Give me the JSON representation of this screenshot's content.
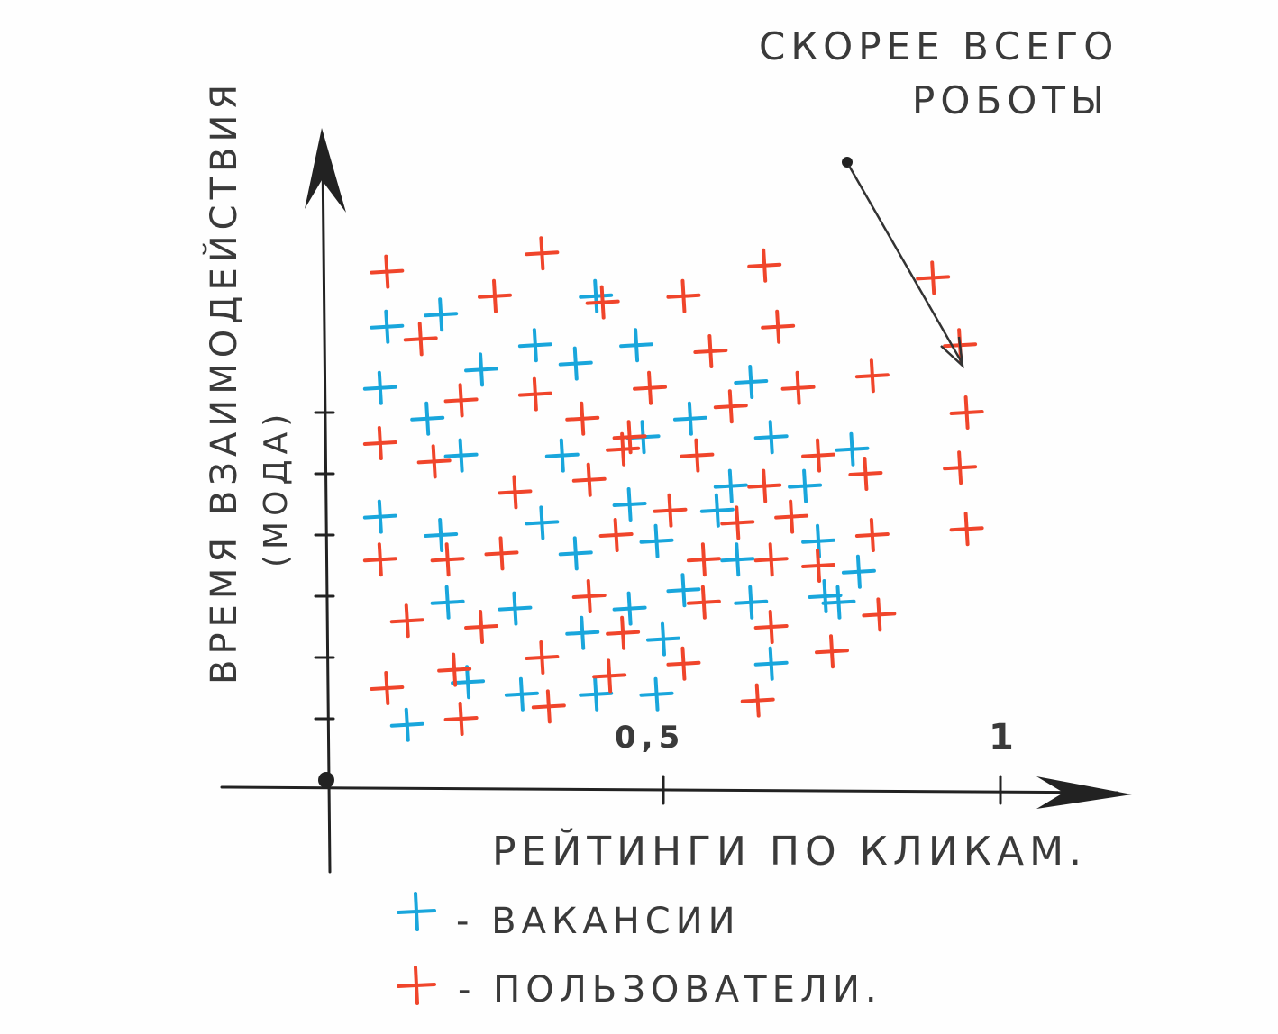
{
  "chart_data": {
    "type": "scatter",
    "xlabel": "РЕЙТИНГИ ПО КЛИКАМ.",
    "ylabel": "ВРЕМЯ ВЗАИМОДЕЙСТВИЯ",
    "ylabel_sub": "(МОДА)",
    "xlim": [
      0,
      1.05
    ],
    "ylim": [
      0,
      1
    ],
    "x_ticks": [
      "0,5",
      "1"
    ],
    "x_tick_values": [
      0.5,
      1.0
    ],
    "y_tick_values": [
      0.1,
      0.2,
      0.3,
      0.4,
      0.5,
      0.6
    ],
    "annotation": {
      "text_line1": "СКОРЕЕ ВСЕГО",
      "text_line2": "РОБОТЫ",
      "points_to": [
        0.95,
        0.62
      ]
    },
    "legend": [
      {
        "marker": "+",
        "label": "- ВАКАНСИИ",
        "color": "#19a6dc"
      },
      {
        "marker": "+",
        "label": "- ПОЛЬЗОВАТЕЛИ.",
        "color": "#f0452b"
      }
    ],
    "series": [
      {
        "name": "ВАКАНСИИ",
        "color": "#19a6dc",
        "points": [
          [
            0.17,
            0.76
          ],
          [
            0.09,
            0.74
          ],
          [
            0.31,
            0.71
          ],
          [
            0.46,
            0.71
          ],
          [
            0.23,
            0.67
          ],
          [
            0.37,
            0.68
          ],
          [
            0.63,
            0.65
          ],
          [
            0.08,
            0.64
          ],
          [
            0.15,
            0.59
          ],
          [
            0.54,
            0.59
          ],
          [
            0.47,
            0.56
          ],
          [
            0.2,
            0.53
          ],
          [
            0.35,
            0.53
          ],
          [
            0.66,
            0.56
          ],
          [
            0.78,
            0.54
          ],
          [
            0.6,
            0.48
          ],
          [
            0.71,
            0.48
          ],
          [
            0.45,
            0.45
          ],
          [
            0.08,
            0.43
          ],
          [
            0.32,
            0.42
          ],
          [
            0.17,
            0.4
          ],
          [
            0.49,
            0.39
          ],
          [
            0.37,
            0.37
          ],
          [
            0.61,
            0.36
          ],
          [
            0.73,
            0.39
          ],
          [
            0.79,
            0.34
          ],
          [
            0.74,
            0.3
          ],
          [
            0.53,
            0.31
          ],
          [
            0.18,
            0.29
          ],
          [
            0.28,
            0.28
          ],
          [
            0.45,
            0.28
          ],
          [
            0.63,
            0.29
          ],
          [
            0.76,
            0.29
          ],
          [
            0.38,
            0.24
          ],
          [
            0.5,
            0.23
          ],
          [
            0.66,
            0.19
          ],
          [
            0.21,
            0.16
          ],
          [
            0.29,
            0.14
          ],
          [
            0.4,
            0.14
          ],
          [
            0.49,
            0.14
          ],
          [
            0.12,
            0.09
          ],
          [
            0.58,
            0.44
          ],
          [
            0.4,
            0.79
          ]
        ]
      },
      {
        "name": "ПОЛЬЗОВАТЕЛИ",
        "color": "#f0452b",
        "points": [
          [
            0.09,
            0.83
          ],
          [
            0.32,
            0.86
          ],
          [
            0.65,
            0.84
          ],
          [
            0.25,
            0.79
          ],
          [
            0.41,
            0.78
          ],
          [
            0.53,
            0.79
          ],
          [
            0.67,
            0.74
          ],
          [
            0.14,
            0.72
          ],
          [
            0.57,
            0.7
          ],
          [
            0.81,
            0.66
          ],
          [
            0.7,
            0.64
          ],
          [
            0.31,
            0.63
          ],
          [
            0.48,
            0.64
          ],
          [
            0.6,
            0.61
          ],
          [
            0.2,
            0.62
          ],
          [
            0.08,
            0.55
          ],
          [
            0.38,
            0.59
          ],
          [
            0.44,
            0.54
          ],
          [
            0.55,
            0.53
          ],
          [
            0.73,
            0.53
          ],
          [
            0.16,
            0.52
          ],
          [
            0.28,
            0.47
          ],
          [
            0.39,
            0.49
          ],
          [
            0.65,
            0.48
          ],
          [
            0.8,
            0.5
          ],
          [
            0.51,
            0.44
          ],
          [
            0.61,
            0.42
          ],
          [
            0.69,
            0.43
          ],
          [
            0.43,
            0.4
          ],
          [
            0.26,
            0.37
          ],
          [
            0.81,
            0.4
          ],
          [
            0.08,
            0.36
          ],
          [
            0.18,
            0.36
          ],
          [
            0.56,
            0.36
          ],
          [
            0.66,
            0.36
          ],
          [
            0.73,
            0.35
          ],
          [
            0.39,
            0.3
          ],
          [
            0.56,
            0.29
          ],
          [
            0.82,
            0.27
          ],
          [
            0.23,
            0.25
          ],
          [
            0.12,
            0.26
          ],
          [
            0.44,
            0.24
          ],
          [
            0.66,
            0.25
          ],
          [
            0.32,
            0.2
          ],
          [
            0.53,
            0.19
          ],
          [
            0.75,
            0.21
          ],
          [
            0.19,
            0.18
          ],
          [
            0.09,
            0.15
          ],
          [
            0.33,
            0.12
          ],
          [
            0.64,
            0.13
          ],
          [
            0.42,
            0.17
          ],
          [
            0.2,
            0.1
          ],
          [
            0.9,
            0.82
          ],
          [
            0.94,
            0.71
          ],
          [
            0.95,
            0.6
          ],
          [
            0.94,
            0.51
          ],
          [
            0.95,
            0.41
          ],
          [
            0.45,
            0.56
          ]
        ]
      }
    ]
  }
}
